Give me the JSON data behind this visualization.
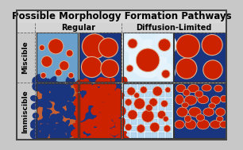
{
  "title": "Possible Morphology Formation Pathways",
  "col_labels": [
    "Regular",
    "Diffusion-Limited"
  ],
  "row_labels": [
    "Miscible",
    "Immiscible"
  ],
  "bg_color": "#c8c8c8",
  "border_color": "#444444",
  "dashed_color": "#666666",
  "blue_dark": "#1a3580",
  "blue_light": "#6aa0cc",
  "blue_vlight": "#b8d8f0",
  "blue_white": "#daeefa",
  "red_color": "#cc2200",
  "white_outline": "#ddb090",
  "orange_bg": "#c86030",
  "panel_border": "#333333",
  "title_size": 8.5,
  "label_size": 7.0,
  "row_label_size": 6.5
}
